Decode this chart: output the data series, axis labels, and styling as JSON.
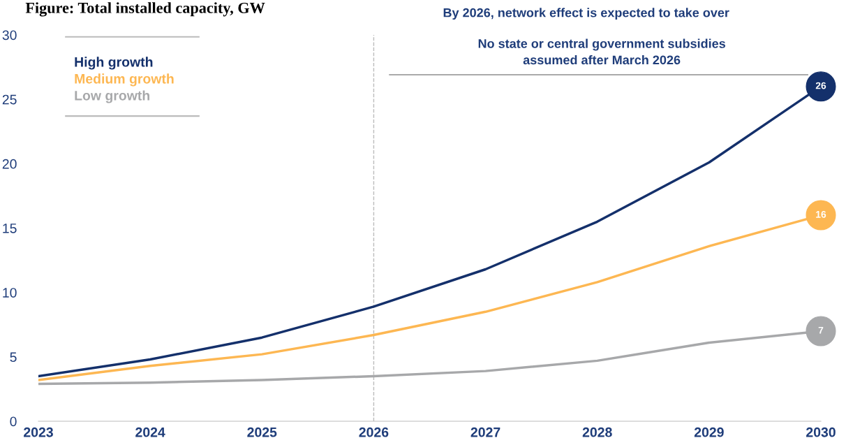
{
  "chart_data": {
    "type": "line",
    "title": "Figure: Total installed capacity, GW",
    "x": [
      2023,
      2024,
      2025,
      2026,
      2027,
      2028,
      2029,
      2030
    ],
    "series": [
      {
        "name": "High growth",
        "color": "#14306b",
        "values": [
          3.5,
          4.8,
          6.5,
          8.9,
          11.8,
          15.5,
          20.1,
          26
        ],
        "value_labels": [
          null,
          null,
          null,
          null,
          null,
          null,
          null,
          "26"
        ]
      },
      {
        "name": "Medium growth",
        "color": "#fdb752",
        "values": [
          3.2,
          4.3,
          5.2,
          6.7,
          8.5,
          10.8,
          13.6,
          16
        ],
        "value_labels": [
          null,
          null,
          null,
          null,
          null,
          null,
          null,
          "16"
        ]
      },
      {
        "name": "Low growth",
        "color": "#a7a8aa",
        "values": [
          2.9,
          3.0,
          3.2,
          3.5,
          3.9,
          4.7,
          6.1,
          7
        ],
        "value_labels": [
          null,
          null,
          null,
          null,
          null,
          null,
          null,
          "7"
        ]
      }
    ],
    "xlim": [
      2023,
      2030
    ],
    "xticks": [
      2023,
      2024,
      2025,
      2026,
      2027,
      2028,
      2029,
      2030
    ],
    "ylim": [
      0,
      30
    ],
    "yticks": [
      0,
      5,
      10,
      15,
      20,
      25,
      30
    ],
    "ref_lines": [
      {
        "axis": "x",
        "value": 2026,
        "label": null,
        "color": "#bbbbbb",
        "line_style": "dashed"
      }
    ],
    "annotations": [
      "By 2026, network effect is expected to take over",
      "No state or central government subsidies\nassumed after March 2026"
    ],
    "grid": false,
    "legend": "top left",
    "marker": "none",
    "line_style": "solid"
  }
}
